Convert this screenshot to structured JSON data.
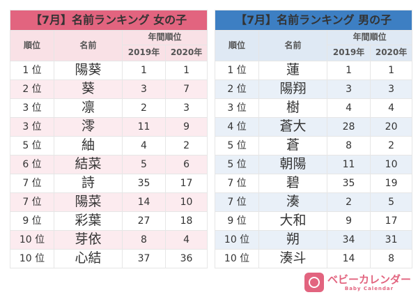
{
  "girls": {
    "title": "【7月】名前ランキング 女の子",
    "h_rank": "順位",
    "h_name": "名前",
    "h_annual": "年間順位",
    "h_2019": "2019年",
    "h_2020": "2020年",
    "rows": [
      [
        "1 位",
        "陽葵",
        "1",
        "1"
      ],
      [
        "2 位",
        "葵",
        "3",
        "7"
      ],
      [
        "3 位",
        "凛",
        "2",
        "3"
      ],
      [
        "3 位",
        "澪",
        "11",
        "9"
      ],
      [
        "5 位",
        "紬",
        "4",
        "2"
      ],
      [
        "6 位",
        "結菜",
        "5",
        "6"
      ],
      [
        "7 位",
        "詩",
        "35",
        "17"
      ],
      [
        "7 位",
        "陽菜",
        "14",
        "10"
      ],
      [
        "9 位",
        "彩葉",
        "27",
        "18"
      ],
      [
        "10 位",
        "芽依",
        "8",
        "4"
      ],
      [
        "10 位",
        "心結",
        "37",
        "36"
      ]
    ]
  },
  "boys": {
    "title": "【7月】名前ランキング 男の子",
    "h_rank": "順位",
    "h_name": "名前",
    "h_annual": "年間順位",
    "h_2019": "2019年",
    "h_2020": "2020年",
    "rows": [
      [
        "1 位",
        "蓮",
        "1",
        "1"
      ],
      [
        "2 位",
        "陽翔",
        "3",
        "3"
      ],
      [
        "3 位",
        "樹",
        "4",
        "4"
      ],
      [
        "4 位",
        "蒼大",
        "28",
        "20"
      ],
      [
        "5 位",
        "蒼",
        "8",
        "2"
      ],
      [
        "5 位",
        "朝陽",
        "11",
        "10"
      ],
      [
        "7 位",
        "碧",
        "35",
        "19"
      ],
      [
        "7 位",
        "湊",
        "2",
        "5"
      ],
      [
        "9 位",
        "大和",
        "9",
        "17"
      ],
      [
        "10 位",
        "朔",
        "34",
        "31"
      ],
      [
        "10 位",
        "湊斗",
        "14",
        "8"
      ]
    ]
  },
  "logo": {
    "jp": "ベビーカレンダー",
    "en": "Baby Calendar"
  },
  "colors": {
    "girls": "#e2647f",
    "boys": "#3d7fc3"
  }
}
